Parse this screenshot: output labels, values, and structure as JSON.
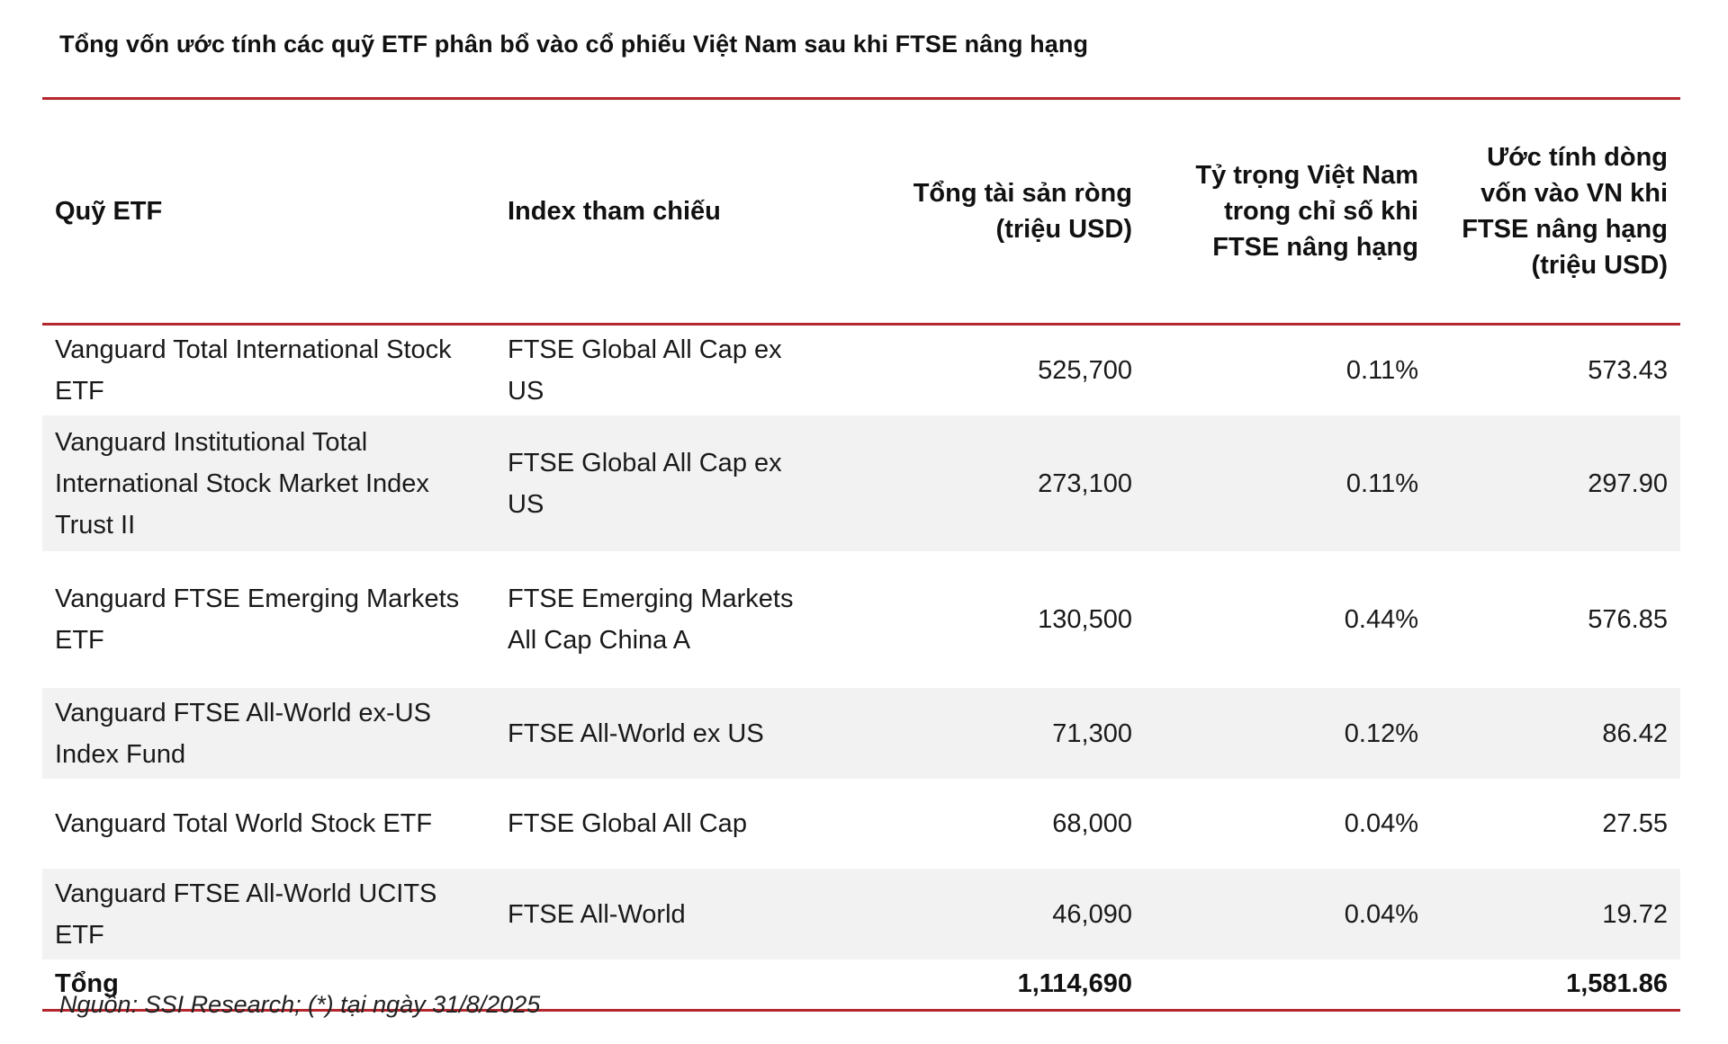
{
  "title": "Tổng vốn ước tính các quỹ ETF phân bổ vào cổ phiếu Việt Nam sau khi FTSE nâng hạng",
  "table": {
    "headers": [
      "Quỹ ETF",
      "Index tham chiếu",
      "Tổng tài sản ròng (triệu USD)",
      "Tỷ trọng Việt Nam trong chỉ số khi FTSE nâng hạng",
      "Ước tính dòng vốn vào VN khi FTSE nâng hạng (triệu USD)"
    ],
    "rows": [
      [
        "Vanguard Total International Stock ETF",
        "FTSE Global All Cap ex US",
        "525,700",
        "0.11%",
        "573.43"
      ],
      [
        "Vanguard Institutional Total International Stock Market Index Trust II",
        "FTSE Global All Cap ex US",
        "273,100",
        "0.11%",
        "297.90"
      ],
      [
        "Vanguard FTSE Emerging Markets ETF",
        "FTSE Emerging Markets All Cap China A",
        "130,500",
        "0.44%",
        "576.85"
      ],
      [
        "Vanguard FTSE All-World ex-US Index Fund",
        "FTSE All-World ex US",
        "71,300",
        "0.12%",
        "86.42"
      ],
      [
        "Vanguard Total World Stock ETF",
        "FTSE Global All Cap",
        "68,000",
        "0.04%",
        "27.55"
      ],
      [
        "Vanguard FTSE All-World UCITS ETF",
        "FTSE All-World",
        "46,090",
        "0.04%",
        "19.72"
      ]
    ],
    "total": {
      "label": "Tổng",
      "net_assets": "1,114,690",
      "inflow": "1,581.86"
    }
  },
  "source": "Nguồn: SSI Research; (*) tại ngày 31/8/2025",
  "colors": {
    "rule": "#b3272d",
    "row_shade": "#f2f2f2"
  }
}
